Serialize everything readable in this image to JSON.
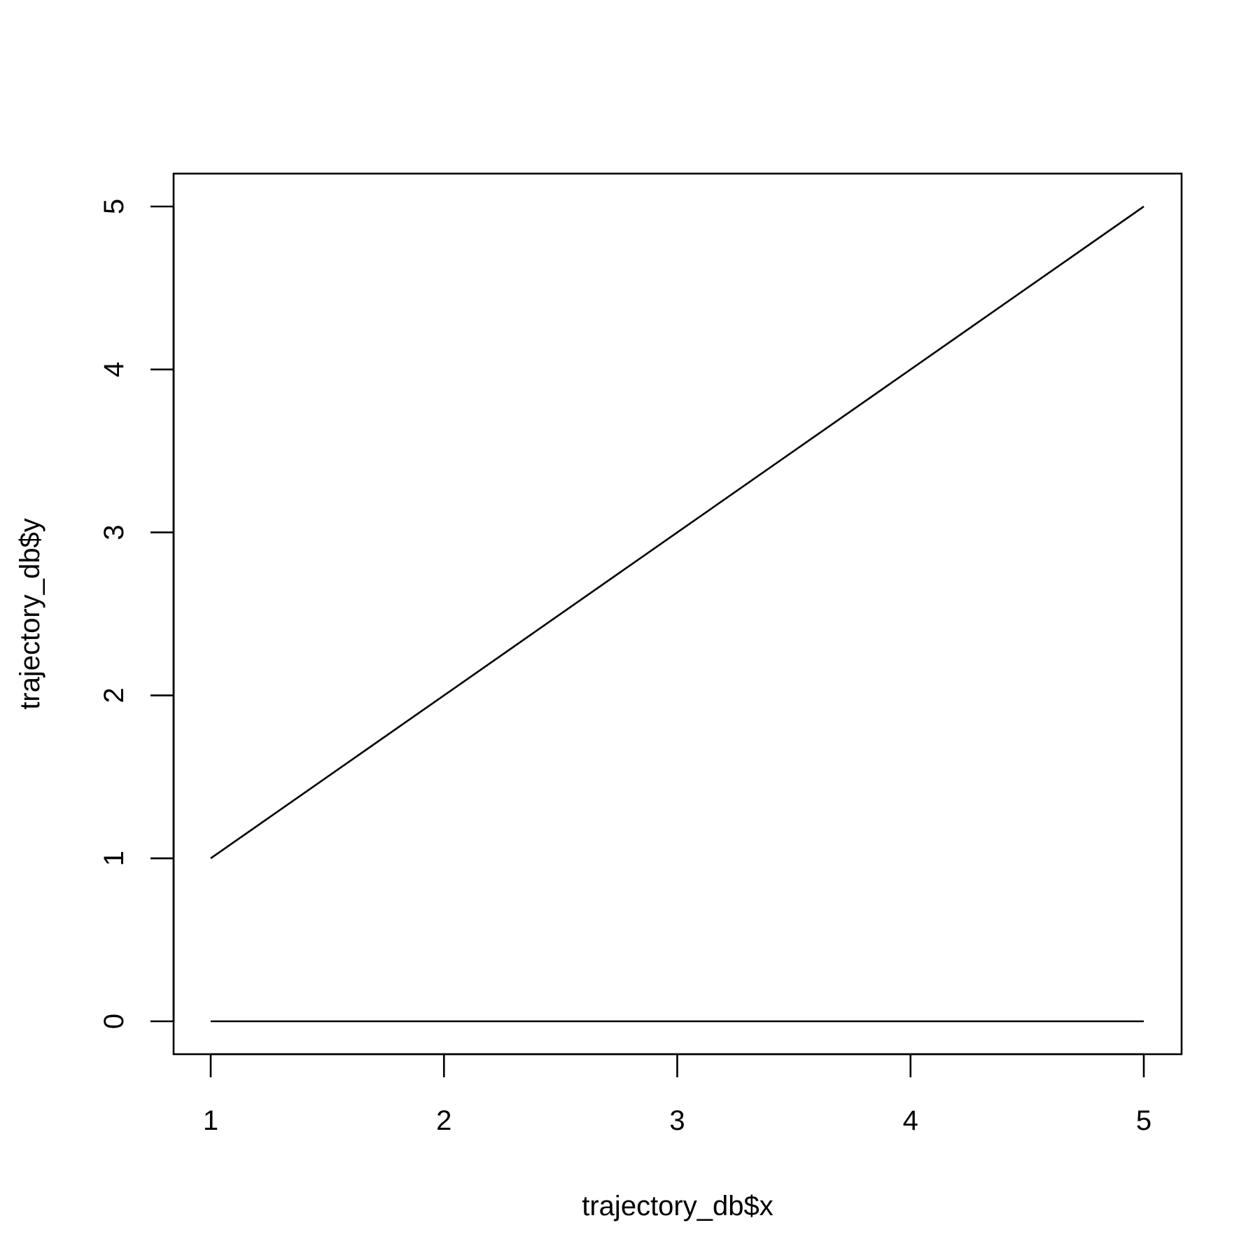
{
  "chart_data": {
    "type": "line",
    "title": "",
    "xlabel": "trajectory_db$x",
    "ylabel": "trajectory_db$y",
    "xlim": [
      1,
      5
    ],
    "ylim": [
      0,
      5
    ],
    "x_ticks": [
      {
        "value": 1,
        "label": "1"
      },
      {
        "value": 2,
        "label": "2"
      },
      {
        "value": 3,
        "label": "3"
      },
      {
        "value": 4,
        "label": "4"
      },
      {
        "value": 5,
        "label": "5"
      }
    ],
    "y_ticks": [
      {
        "value": 0,
        "label": "0"
      },
      {
        "value": 1,
        "label": "1"
      },
      {
        "value": 2,
        "label": "2"
      },
      {
        "value": 3,
        "label": "3"
      },
      {
        "value": 4,
        "label": "4"
      },
      {
        "value": 5,
        "label": "5"
      }
    ],
    "series": [
      {
        "x": [
          1,
          2,
          3,
          4,
          5
        ],
        "values": [
          1,
          2,
          3,
          4,
          5
        ]
      },
      {
        "x": [
          1,
          2,
          3,
          4,
          5
        ],
        "values": [
          0,
          0,
          0,
          0,
          0
        ]
      }
    ],
    "grid": false,
    "legend": "none",
    "line_color": "#000000"
  }
}
